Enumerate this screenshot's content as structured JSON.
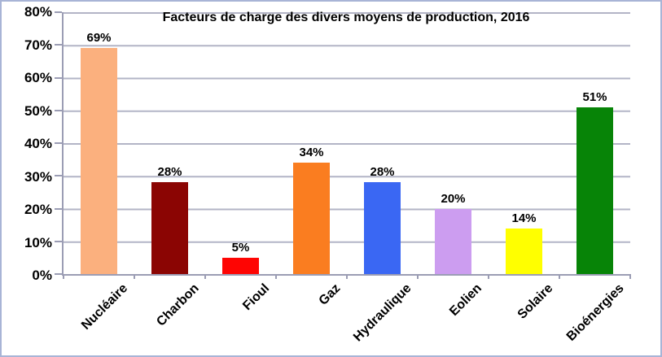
{
  "chart_data": {
    "type": "bar",
    "title": "Facteurs de charge des divers moyens de production, 2016",
    "categories": [
      "Nucléaire",
      "Charbon",
      "Fioul",
      "Gaz",
      "Hydraulique",
      "Eolien",
      "Solaire",
      "Bioénergies"
    ],
    "values": [
      69,
      28,
      5,
      34,
      28,
      20,
      14,
      51
    ],
    "value_labels": [
      "69%",
      "28%",
      "5%",
      "34%",
      "28%",
      "20%",
      "14%",
      "51%"
    ],
    "bar_colors": [
      "#fbb07e",
      "#8b0503",
      "#fe0503",
      "#fa7d20",
      "#3a67f3",
      "#cc9df0",
      "#ffff00",
      "#078407"
    ],
    "xlabel": "",
    "ylabel": "",
    "ylim": [
      0,
      80
    ],
    "ytick_step": 10,
    "yticks": [
      "0%",
      "10%",
      "20%",
      "30%",
      "40%",
      "50%",
      "60%",
      "70%",
      "80%"
    ],
    "grid": true,
    "legend": false
  },
  "colors": {
    "background": "#ffffff",
    "frame_border": "#a8b4d6",
    "gridline": "#b2b4c6",
    "axis": "#9b9db4",
    "text": "#000000"
  }
}
